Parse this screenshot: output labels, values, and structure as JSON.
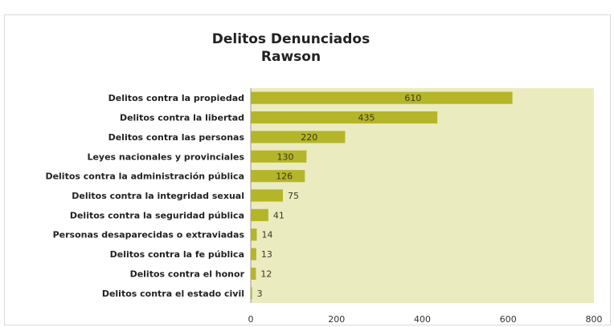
{
  "chart_data": {
    "type": "bar",
    "orientation": "horizontal",
    "title": "Delitos Denunciados",
    "subtitle": "Rawson",
    "categories": [
      "Delitos contra la propiedad",
      "Delitos contra la libertad",
      "Delitos contra las personas",
      "Leyes nacionales y provinciales",
      "Delitos contra la administración pública",
      "Delitos contra la integridad sexual",
      "Delitos contra la seguridad pública",
      "Personas desaparecidas o extraviadas",
      "Delitos contra la fe pública",
      "Delitos contra el honor",
      "Delitos contra el estado civil"
    ],
    "values": [
      610,
      435,
      220,
      130,
      126,
      75,
      41,
      14,
      13,
      12,
      3
    ],
    "xlim": [
      0,
      800
    ],
    "xticks": [
      0,
      200,
      400,
      600,
      800
    ],
    "grid": false,
    "legend": "none",
    "bar_color": "#b5b52a",
    "plot_bg_color": "#ebebc0",
    "data_labels": true
  }
}
